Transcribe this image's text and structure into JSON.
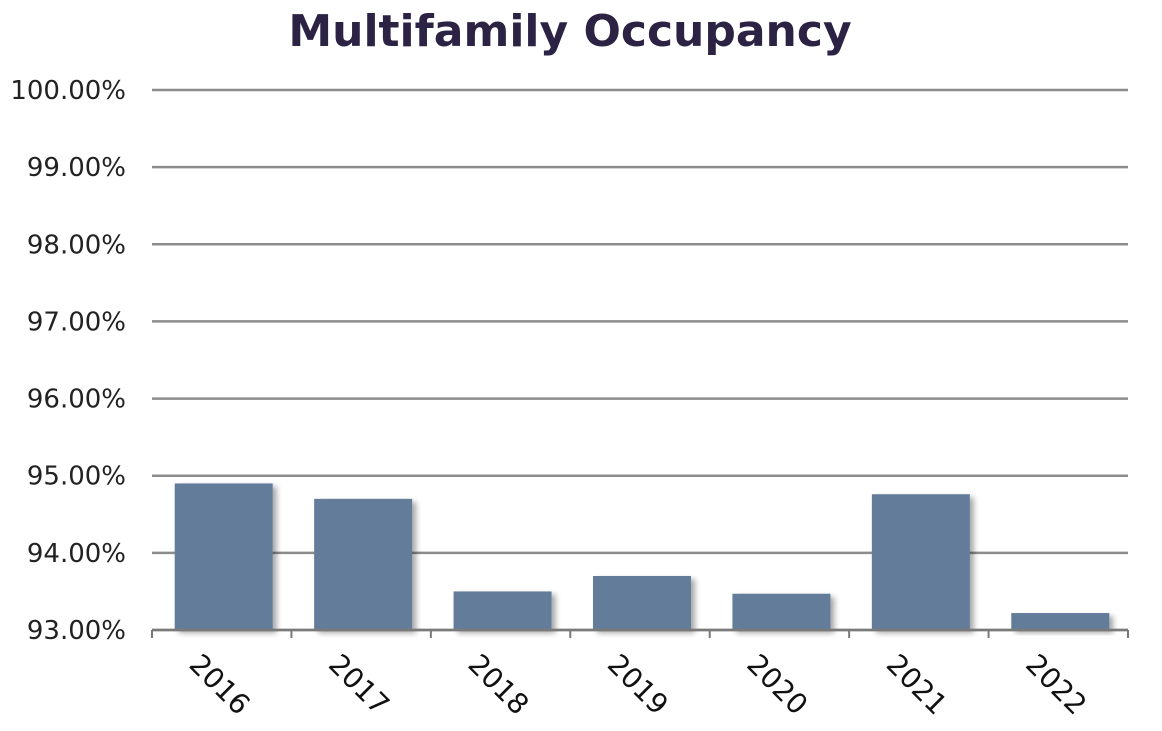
{
  "chart_data": {
    "type": "bar",
    "title": "Multifamily Occupancy",
    "xlabel": "",
    "ylabel": "",
    "categories": [
      "2016",
      "2017",
      "2018",
      "2019",
      "2020",
      "2021",
      "2022"
    ],
    "values": [
      94.9,
      94.7,
      93.5,
      93.7,
      93.47,
      94.76,
      93.22
    ],
    "ylim": [
      93.0,
      100.0
    ],
    "yticks": [
      93.0,
      94.0,
      95.0,
      96.0,
      97.0,
      98.0,
      99.0,
      100.0
    ],
    "ytick_labels": [
      "93.00%",
      "94.00%",
      "95.00%",
      "96.00%",
      "97.00%",
      "98.00%",
      "99.00%",
      "100.00%"
    ],
    "bar_color": "#647c9a",
    "grid": true,
    "legend": "none"
  }
}
